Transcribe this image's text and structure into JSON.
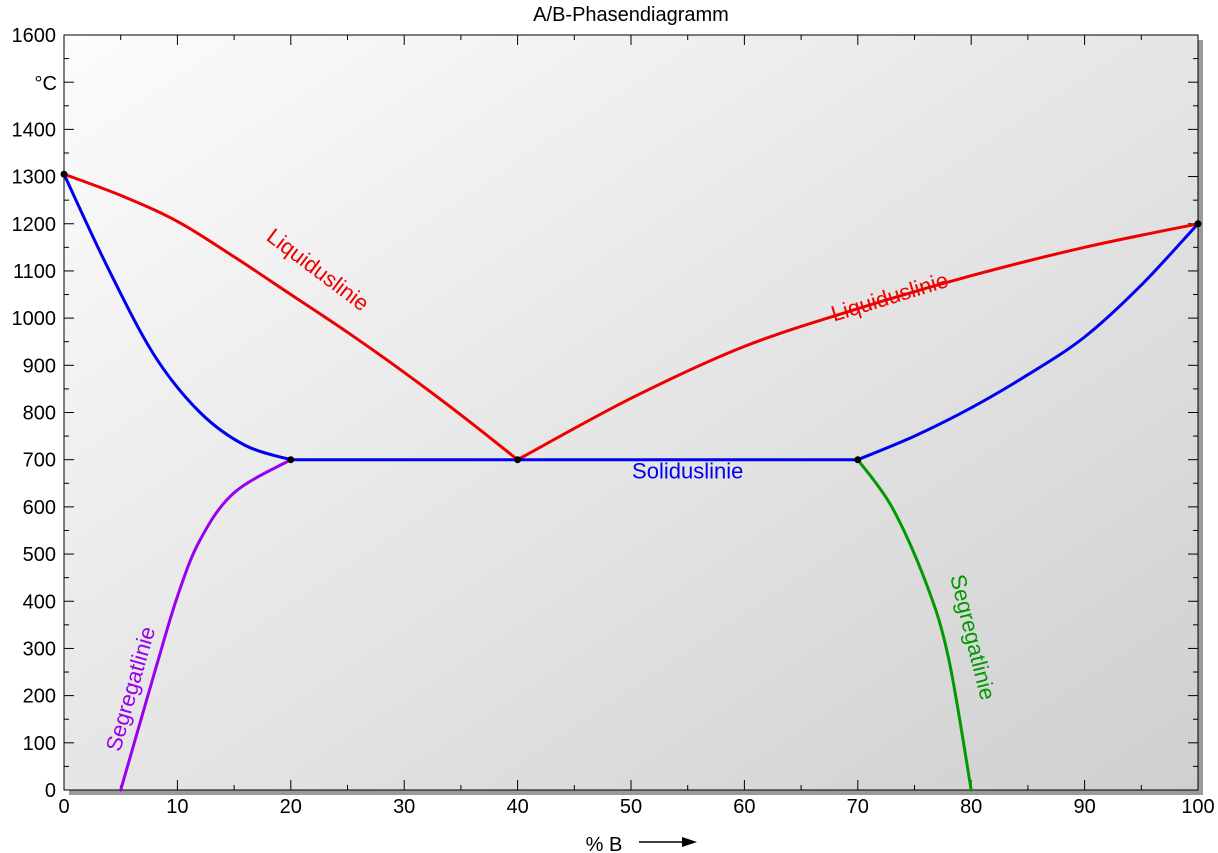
{
  "chart_data": {
    "type": "line",
    "title": "A/B-Phasendiagramm",
    "xlabel": "% B",
    "ylabel": "°C",
    "xlim": [
      0,
      100
    ],
    "ylim": [
      0,
      1600
    ],
    "x_ticks": [
      0,
      10,
      20,
      30,
      40,
      50,
      60,
      70,
      80,
      90,
      100
    ],
    "y_ticks": [
      0,
      100,
      200,
      300,
      400,
      500,
      600,
      700,
      800,
      900,
      1000,
      1100,
      1200,
      1300,
      1400,
      1500,
      1600
    ],
    "y_tick_labels": [
      "0",
      "100",
      "200",
      "300",
      "400",
      "500",
      "600",
      "700",
      "800",
      "900",
      "1000",
      "1100",
      "1200",
      "1300",
      "1400",
      "",
      "1600"
    ],
    "grid": false,
    "series": [
      {
        "name": "Liquiduslinie",
        "color": "#ee0000",
        "x": [
          0,
          5,
          10,
          15,
          20,
          25,
          30,
          35,
          40
        ],
        "y": [
          1305,
          1260,
          1205,
          1130,
          1050,
          970,
          885,
          795,
          700
        ]
      },
      {
        "name": "Liquiduslinie",
        "color": "#ee0000",
        "x": [
          40,
          50,
          60,
          70,
          80,
          90,
          100
        ],
        "y": [
          700,
          830,
          940,
          1020,
          1090,
          1150,
          1200
        ]
      },
      {
        "name": "",
        "color": "#0000ee",
        "x": [
          0,
          4,
          8,
          12,
          16,
          20
        ],
        "y": [
          1305,
          1100,
          920,
          800,
          730,
          700
        ]
      },
      {
        "name": "Solidusli­nie",
        "color": "#0000ee",
        "x": [
          20,
          40,
          70
        ],
        "y": [
          700,
          700,
          700
        ]
      },
      {
        "name": "",
        "color": "#0000ee",
        "x": [
          70,
          75,
          80,
          85,
          90,
          95,
          100
        ],
        "y": [
          700,
          750,
          810,
          880,
          960,
          1070,
          1200
        ]
      },
      {
        "name": "Segregatlinie",
        "color": "#9900ee",
        "x": [
          5,
          8,
          10,
          12,
          15,
          20
        ],
        "y": [
          0,
          250,
          410,
          530,
          630,
          700
        ]
      },
      {
        "name": "Segregatlinie",
        "color": "#009900",
        "x": [
          70,
          73,
          76,
          78,
          80
        ],
        "y": [
          700,
          600,
          440,
          280,
          0
        ]
      }
    ],
    "points": [
      {
        "x": 0,
        "y": 1305
      },
      {
        "x": 20,
        "y": 700
      },
      {
        "x": 40,
        "y": 700
      },
      {
        "x": 70,
        "y": 700
      },
      {
        "x": 100,
        "y": 1200
      }
    ],
    "annotations": [
      {
        "text": "Liquiduslinie",
        "x": 22,
        "y": 1090,
        "rotate": 37,
        "color": "#ee0000"
      },
      {
        "text": "Liquiduslinie",
        "x": 73,
        "y": 1030,
        "rotate": -17,
        "color": "#ee0000"
      },
      {
        "text": "Solidusli­nie",
        "x": 55,
        "y": 660,
        "rotate": 0,
        "color": "#0000ee"
      },
      {
        "text": "Segregatlinie",
        "x": 6.5,
        "y": 210,
        "rotate": -74,
        "color": "#9900ee"
      },
      {
        "text": "Segregatlinie",
        "x": 79.5,
        "y": 320,
        "rotate": 76,
        "color": "#009900"
      }
    ]
  }
}
